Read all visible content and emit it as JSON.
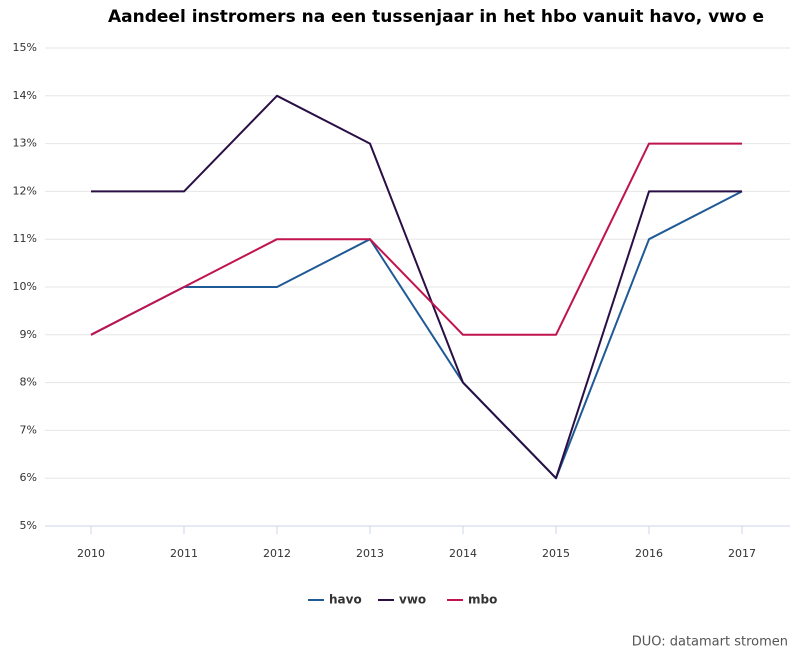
{
  "chart_data": {
    "type": "line",
    "title": "Aandeel instromers na een tussenjaar in het hbo vanuit havo, vwo e",
    "source": "DUO: datamart stromen",
    "categories": [
      "2010",
      "2011",
      "2012",
      "2013",
      "2014",
      "2015",
      "2016",
      "2017"
    ],
    "series": [
      {
        "name": "havo",
        "color": "#1f5a96",
        "values": [
          9,
          10,
          10,
          11,
          8,
          6,
          11,
          12
        ]
      },
      {
        "name": "vwo",
        "color": "#2a0f45",
        "values": [
          12,
          12,
          14,
          13,
          8,
          6,
          12,
          12
        ]
      },
      {
        "name": "mbo",
        "color": "#c0134f",
        "values": [
          9,
          10,
          11,
          11,
          9,
          9,
          13,
          13
        ]
      }
    ],
    "ylim": [
      5,
      15
    ],
    "yticks": [
      {
        "value": 5,
        "label": "5%"
      },
      {
        "value": 6,
        "label": "6%"
      },
      {
        "value": 7,
        "label": "7%"
      },
      {
        "value": 8,
        "label": "8%"
      },
      {
        "value": 9,
        "label": "9%"
      },
      {
        "value": 10,
        "label": "10%"
      },
      {
        "value": 11,
        "label": "11%"
      },
      {
        "value": 12,
        "label": "12%"
      },
      {
        "value": 13,
        "label": "13%"
      },
      {
        "value": 14,
        "label": "14%"
      },
      {
        "value": 15,
        "label": "15%"
      }
    ],
    "grid": true
  }
}
